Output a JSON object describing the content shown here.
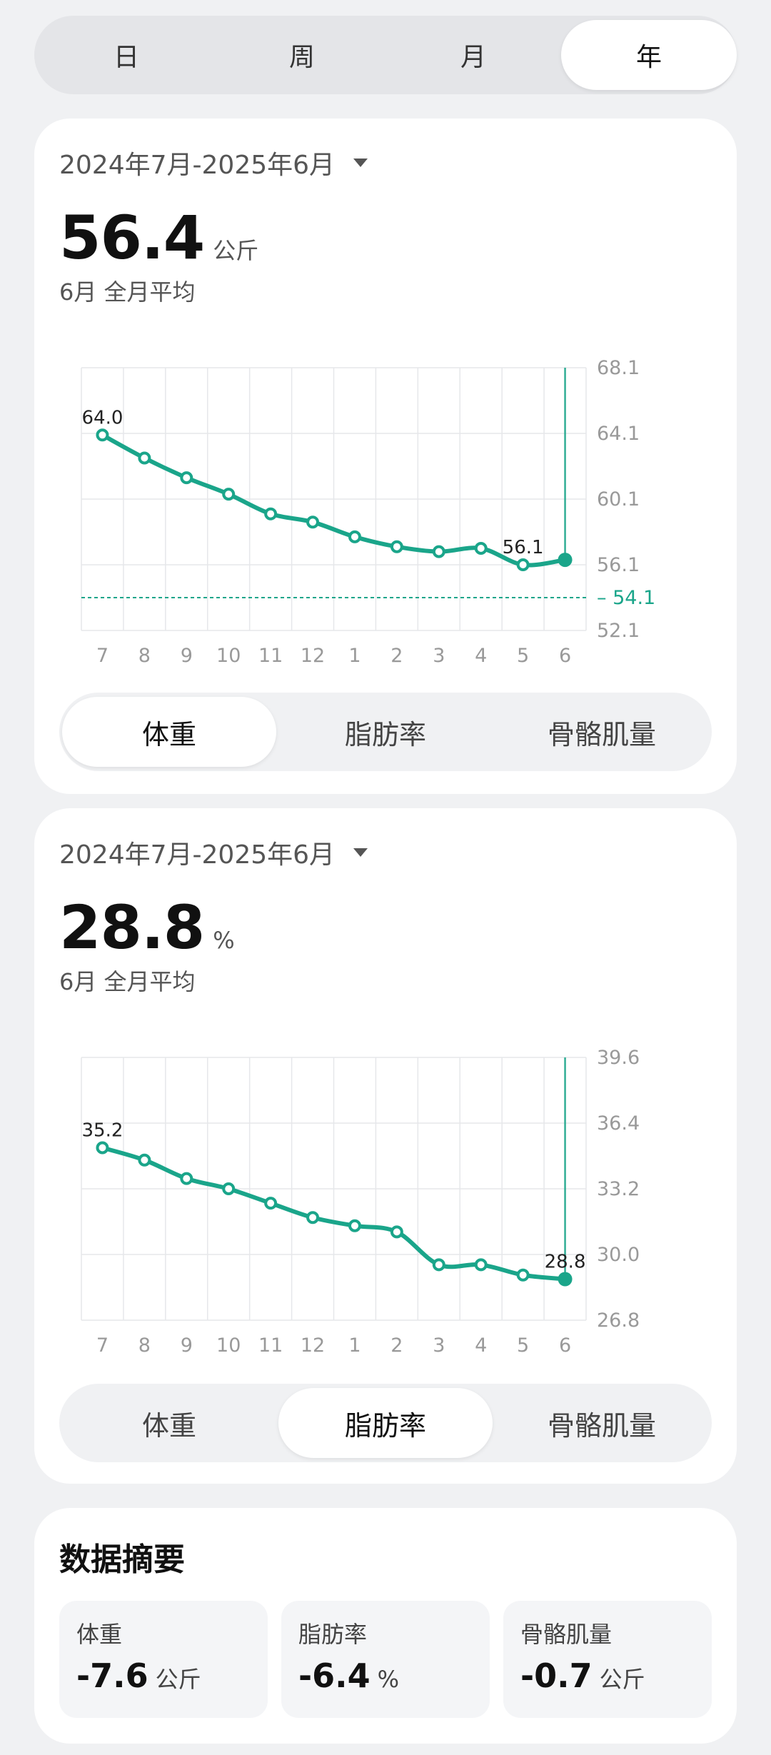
{
  "period_tabs": [
    "日",
    "周",
    "月",
    "年"
  ],
  "period_active": 3,
  "weight_card": {
    "range": "2024年7月-2025年6月",
    "value": "56.4",
    "unit": "公斤",
    "subtitle": "6月 全月平均",
    "tabs": [
      "体重",
      "脂肪率",
      "骨骼肌量"
    ],
    "active_tab": 0
  },
  "fat_card": {
    "range": "2024年7月-2025年6月",
    "value": "28.8",
    "unit": "%",
    "subtitle": "6月 全月平均",
    "tabs": [
      "体重",
      "脂肪率",
      "骨骼肌量"
    ],
    "active_tab": 1
  },
  "summary": {
    "title": "数据摘要",
    "items": [
      {
        "label": "体重",
        "value": "-7.6",
        "unit": "公斤"
      },
      {
        "label": "脂肪率",
        "value": "-6.4",
        "unit": "%"
      },
      {
        "label": "骨骼肌量",
        "value": "-0.7",
        "unit": "公斤"
      }
    ]
  },
  "colors": {
    "accent": "#1aa58a",
    "grid": "#e6e7ea"
  },
  "chart_data": [
    {
      "type": "line",
      "categories": [
        "7",
        "8",
        "9",
        "10",
        "11",
        "12",
        "1",
        "2",
        "3",
        "4",
        "5",
        "6"
      ],
      "values": [
        64.0,
        62.6,
        61.4,
        60.4,
        59.2,
        58.7,
        57.8,
        57.2,
        56.9,
        57.1,
        56.1,
        56.4
      ],
      "ylim": [
        52.1,
        68.1
      ],
      "yticks": [
        "68.1",
        "64.1",
        "60.1",
        "56.1",
        "52.1"
      ],
      "target": {
        "value": 54.1,
        "label": "54.1"
      },
      "point_labels": [
        {
          "index": 0,
          "text": "64.0"
        },
        {
          "index": 10,
          "text": "56.1"
        }
      ],
      "highlight_index": 11,
      "grid": true
    },
    {
      "type": "line",
      "categories": [
        "7",
        "8",
        "9",
        "10",
        "11",
        "12",
        "1",
        "2",
        "3",
        "4",
        "5",
        "6"
      ],
      "values": [
        35.2,
        34.6,
        33.7,
        33.2,
        32.5,
        31.8,
        31.4,
        31.1,
        29.5,
        29.5,
        29.0,
        28.8
      ],
      "ylim": [
        26.8,
        39.6
      ],
      "yticks": [
        "39.6",
        "36.4",
        "33.2",
        "30.0",
        "26.8"
      ],
      "point_labels": [
        {
          "index": 0,
          "text": "35.2"
        },
        {
          "index": 11,
          "text": "28.8"
        }
      ],
      "highlight_index": 11,
      "grid": true
    }
  ]
}
